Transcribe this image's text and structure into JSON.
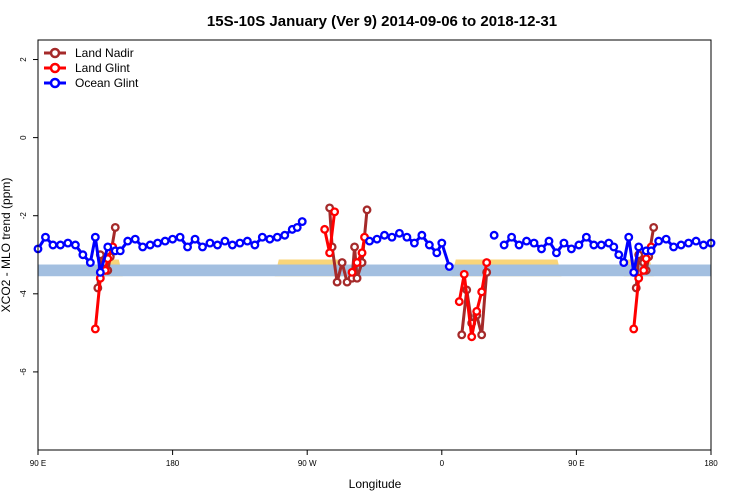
{
  "chart_data": {
    "type": "line",
    "title": "15S-10S January (Ver 9)   2014-09-06 to 2018-12-31",
    "xlabel": "Longitude",
    "ylabel": "XCO2 - MLO trend (ppm)",
    "xlim": [
      -90,
      180
    ],
    "ylim": [
      -8,
      2.5
    ],
    "x_ticks": [
      {
        "value": -90,
        "label": "90 E"
      },
      {
        "value": -36,
        "label": "180"
      },
      {
        "value": 18,
        "label": "90 W"
      },
      {
        "value": 72,
        "label": "0"
      },
      {
        "value": 126,
        "label": "90 E"
      },
      {
        "value": 180,
        "label": "180"
      }
    ],
    "y_ticks": [
      {
        "value": 2,
        "label": "2"
      },
      {
        "value": 0,
        "label": "0"
      },
      {
        "value": -2,
        "label": "-2"
      },
      {
        "value": -4,
        "label": "-4"
      },
      {
        "value": -6,
        "label": "-6"
      }
    ],
    "legend": {
      "position": "top-left"
    },
    "band": {
      "y_low": -3.55,
      "y_high": -3.25,
      "color": "#a3bfe0"
    },
    "land_fill": {
      "color": "#f9d57a",
      "regions": [
        {
          "x_start": -66,
          "x_end": -56
        },
        {
          "x_start": 5,
          "x_end": 34
        },
        {
          "x_start": 76,
          "x_end": 120
        },
        {
          "x_start": 145,
          "x_end": 157
        }
      ]
    },
    "series": [
      {
        "name": "Land Nadir",
        "color": "#a52a2a",
        "segments": [
          [
            [
              -66,
              -3.85
            ],
            [
              -65,
              -3.0
            ],
            [
              -63,
              -3.2
            ],
            [
              -62,
              -3.4
            ],
            [
              -61,
              -3.05
            ],
            [
              -59,
              -2.3
            ]
          ],
          [
            [
              27,
              -1.8
            ],
            [
              28,
              -2.8
            ],
            [
              30,
              -3.7
            ],
            [
              32,
              -3.2
            ],
            [
              34,
              -3.7
            ],
            [
              36,
              -3.6
            ],
            [
              37,
              -2.8
            ],
            [
              38,
              -3.6
            ],
            [
              40,
              -3.2
            ],
            [
              42,
              -1.85
            ]
          ],
          [
            [
              80,
              -5.05
            ],
            [
              82,
              -3.9
            ],
            [
              84,
              -4.75
            ],
            [
              86,
              -4.55
            ],
            [
              88,
              -5.05
            ],
            [
              90,
              -3.45
            ]
          ],
          [
            [
              150,
              -3.85
            ],
            [
              151,
              -3.0
            ],
            [
              153,
              -3.2
            ],
            [
              154,
              -3.4
            ],
            [
              155,
              -3.05
            ],
            [
              157,
              -2.3
            ]
          ]
        ]
      },
      {
        "name": "Land Glint",
        "color": "#ff0000",
        "segments": [
          [
            [
              -67,
              -4.9
            ],
            [
              -65,
              -3.6
            ],
            [
              -63,
              -3.4
            ],
            [
              -62,
              -3.1
            ],
            [
              -60,
              -2.8
            ]
          ],
          [
            [
              25,
              -2.35
            ],
            [
              27,
              -2.95
            ],
            [
              29,
              -1.9
            ]
          ],
          [
            [
              36,
              -3.45
            ],
            [
              38,
              -3.2
            ],
            [
              40,
              -2.95
            ],
            [
              41,
              -2.55
            ]
          ],
          [
            [
              79,
              -4.2
            ],
            [
              81,
              -3.5
            ],
            [
              84,
              -5.1
            ],
            [
              86,
              -4.45
            ],
            [
              88,
              -3.95
            ],
            [
              90,
              -3.2
            ]
          ],
          [
            [
              149,
              -4.9
            ],
            [
              151,
              -3.6
            ],
            [
              153,
              -3.4
            ],
            [
              154,
              -3.1
            ],
            [
              156,
              -2.8
            ]
          ]
        ]
      },
      {
        "name": "Ocean Glint",
        "color": "#0000ff",
        "segments": [
          [
            [
              -90,
              -2.85
            ],
            [
              -87,
              -2.55
            ],
            [
              -84,
              -2.75
            ],
            [
              -81,
              -2.75
            ],
            [
              -78,
              -2.7
            ],
            [
              -75,
              -2.75
            ],
            [
              -72,
              -3.0
            ],
            [
              -69,
              -3.2
            ],
            [
              -67,
              -2.55
            ],
            [
              -65,
              -3.45
            ],
            [
              -62,
              -2.8
            ],
            [
              -59,
              -2.9
            ],
            [
              -57,
              -2.9
            ],
            [
              -54,
              -2.65
            ],
            [
              -51,
              -2.6
            ],
            [
              -48,
              -2.8
            ],
            [
              -45,
              -2.75
            ],
            [
              -42,
              -2.7
            ],
            [
              -39,
              -2.65
            ],
            [
              -36,
              -2.6
            ],
            [
              -33,
              -2.55
            ],
            [
              -30,
              -2.8
            ],
            [
              -27,
              -2.6
            ],
            [
              -24,
              -2.8
            ],
            [
              -21,
              -2.7
            ],
            [
              -18,
              -2.75
            ],
            [
              -15,
              -2.65
            ],
            [
              -12,
              -2.75
            ],
            [
              -9,
              -2.7
            ],
            [
              -6,
              -2.65
            ],
            [
              -3,
              -2.75
            ],
            [
              0,
              -2.55
            ],
            [
              3,
              -2.6
            ],
            [
              6,
              -2.55
            ],
            [
              9,
              -2.5
            ],
            [
              12,
              -2.35
            ],
            [
              14,
              -2.3
            ],
            [
              16,
              -2.15
            ]
          ],
          [
            [
              43,
              -2.65
            ],
            [
              46,
              -2.6
            ],
            [
              49,
              -2.5
            ],
            [
              52,
              -2.55
            ],
            [
              55,
              -2.45
            ],
            [
              58,
              -2.55
            ],
            [
              61,
              -2.7
            ],
            [
              64,
              -2.5
            ],
            [
              67,
              -2.75
            ],
            [
              70,
              -2.95
            ],
            [
              72,
              -2.7
            ],
            [
              75,
              -3.3
            ]
          ],
          [
            [
              93,
              -2.5
            ]
          ],
          [
            [
              97,
              -2.75
            ],
            [
              100,
              -2.55
            ],
            [
              103,
              -2.75
            ],
            [
              106,
              -2.65
            ],
            [
              109,
              -2.7
            ],
            [
              112,
              -2.85
            ],
            [
              115,
              -2.65
            ],
            [
              118,
              -2.95
            ],
            [
              121,
              -2.7
            ],
            [
              124,
              -2.85
            ],
            [
              127,
              -2.75
            ],
            [
              130,
              -2.55
            ],
            [
              133,
              -2.75
            ],
            [
              136,
              -2.75
            ],
            [
              139,
              -2.7
            ],
            [
              141,
              -2.8
            ],
            [
              143,
              -3.0
            ],
            [
              145,
              -3.2
            ],
            [
              147,
              -2.55
            ],
            [
              149,
              -3.45
            ],
            [
              151,
              -2.8
            ],
            [
              154,
              -2.9
            ],
            [
              156,
              -2.9
            ],
            [
              159,
              -2.65
            ],
            [
              162,
              -2.6
            ],
            [
              165,
              -2.8
            ],
            [
              168,
              -2.75
            ],
            [
              171,
              -2.7
            ],
            [
              174,
              -2.65
            ],
            [
              177,
              -2.75
            ],
            [
              180,
              -2.7
            ]
          ]
        ]
      }
    ]
  }
}
